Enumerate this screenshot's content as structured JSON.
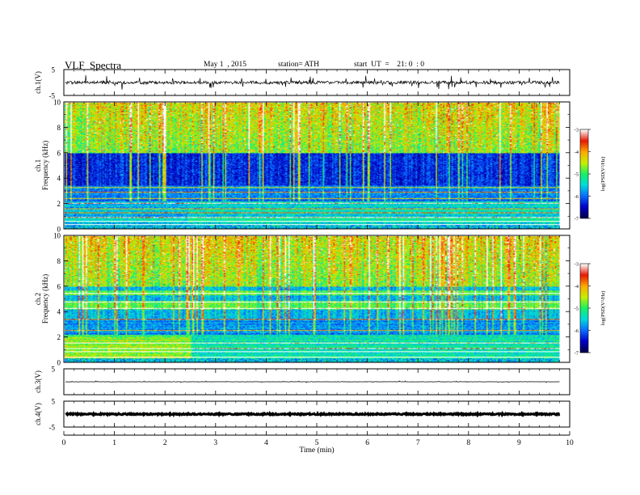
{
  "header": {
    "title": "VLF  Spectra",
    "date": "May 1  , 2015",
    "station": "station= ATH",
    "start": "start  UT  =    21: 0  : 0"
  },
  "colors": {
    "background": "#ffffff",
    "axes": "#000000",
    "colormap": [
      "#00004b",
      "#0000c8",
      "#0a6eff",
      "#00dcdc",
      "#19f064",
      "#c8f000",
      "#ffaa00",
      "#e61900",
      "#ffffff"
    ]
  },
  "chart_data": [
    {
      "id": "ch1-waveform",
      "type": "line",
      "ylabel": "ch.1(V)",
      "ylim": [
        -5,
        5
      ],
      "y_ticks": [
        "5",
        "-5"
      ],
      "xlim": [
        0,
        10
      ],
      "trace": {
        "baseline": 0,
        "noise_amplitude": 0.6,
        "spike_amplitude": 2.5,
        "spike_min": -5,
        "spike_max": 5,
        "end_minute": 9.8,
        "color": "#000000"
      }
    },
    {
      "id": "ch1-spectrogram",
      "type": "heatmap",
      "ylabel": "ch.1",
      "ylabel2": "Frequency  (kHz)",
      "ylim": [
        0,
        10
      ],
      "y_ticks": [
        "0",
        "2",
        "4",
        "6",
        "8",
        "10"
      ],
      "xlim": [
        0,
        10
      ],
      "data_end_minute": 9.8,
      "colorbar": {
        "label": "log(PSD(V²/Hz)",
        "range": [
          -7,
          -3
        ],
        "ticks": [
          "-3",
          "-4",
          "-5",
          "-6",
          "-7"
        ]
      },
      "strong_lines_khz": [
        0.3,
        0.55,
        0.9,
        1.25,
        1.6,
        2.0,
        2.4,
        2.9,
        3.3
      ],
      "transition_minute": 2.4
    },
    {
      "id": "ch2-spectrogram",
      "type": "heatmap",
      "ylabel": "ch.2",
      "ylabel2": "Frequency  (kHz)",
      "ylim": [
        0,
        10
      ],
      "y_ticks": [
        "0",
        "2",
        "4",
        "6",
        "8",
        "10"
      ],
      "xlim": [
        0,
        10
      ],
      "data_end_minute": 9.8,
      "colorbar": {
        "label": "log(PSD(V²/Hz)",
        "range": [
          -7,
          -3
        ],
        "ticks": [
          "-3",
          "-4",
          "-5",
          "-6",
          "-7"
        ]
      },
      "strong_lines_khz": [
        0.4,
        0.8,
        1.1,
        1.5,
        2.5,
        3.4,
        4.3,
        4.8,
        5.5
      ],
      "transition_minute": 2.5
    },
    {
      "id": "ch3-waveform",
      "type": "line",
      "ylabel": "ch.3(V)",
      "ylim": [
        -5,
        5
      ],
      "y_ticks": [
        "5"
      ],
      "xlim": [
        0,
        10
      ],
      "trace": {
        "baseline": 0,
        "noise_amplitude": 0.05,
        "spike_amplitude": 0.3,
        "spike_min": -0.5,
        "spike_max": 0.5,
        "end_minute": 9.8,
        "color": "#000000"
      }
    },
    {
      "id": "ch4-waveform",
      "type": "line",
      "ylabel": "ch.4(V)",
      "ylim": [
        -5,
        5
      ],
      "y_ticks": [
        "5",
        "-5"
      ],
      "xlim": [
        0,
        10
      ],
      "trace": {
        "baseline": 0,
        "noise_amplitude": 0.25,
        "spike_amplitude": 0,
        "spike_min": -0.3,
        "spike_max": 0.3,
        "end_minute": 9.8,
        "color": "#000000"
      }
    }
  ],
  "x_axis": {
    "label": "Time  (min)",
    "range": [
      0,
      10
    ],
    "ticks": [
      "0",
      "1",
      "2",
      "3",
      "4",
      "5",
      "6",
      "7",
      "8",
      "9",
      "10"
    ]
  }
}
